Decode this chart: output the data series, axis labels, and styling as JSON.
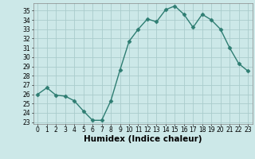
{
  "x": [
    0,
    1,
    2,
    3,
    4,
    5,
    6,
    7,
    8,
    9,
    10,
    11,
    12,
    13,
    14,
    15,
    16,
    17,
    18,
    19,
    20,
    21,
    22,
    23
  ],
  "y": [
    26.0,
    26.7,
    25.9,
    25.8,
    25.3,
    24.2,
    23.2,
    23.2,
    25.3,
    28.6,
    31.7,
    33.0,
    34.1,
    33.8,
    35.1,
    35.5,
    34.6,
    33.2,
    34.6,
    34.0,
    33.0,
    31.0,
    29.3,
    28.5
  ],
  "line_color": "#2e7d72",
  "marker": "D",
  "marker_size": 2.5,
  "bg_color": "#cce8e8",
  "grid_color": "#aacccc",
  "xlabel": "Humidex (Indice chaleur)",
  "ylim_min": 22.8,
  "ylim_max": 35.8,
  "xlim_min": -0.5,
  "xlim_max": 23.5,
  "yticks": [
    23,
    24,
    25,
    26,
    27,
    28,
    29,
    30,
    31,
    32,
    33,
    34,
    35
  ],
  "xticks": [
    0,
    1,
    2,
    3,
    4,
    5,
    6,
    7,
    8,
    9,
    10,
    11,
    12,
    13,
    14,
    15,
    16,
    17,
    18,
    19,
    20,
    21,
    22,
    23
  ],
  "tick_fontsize": 5.5,
  "xlabel_fontsize": 7.5,
  "line_width": 1.0
}
